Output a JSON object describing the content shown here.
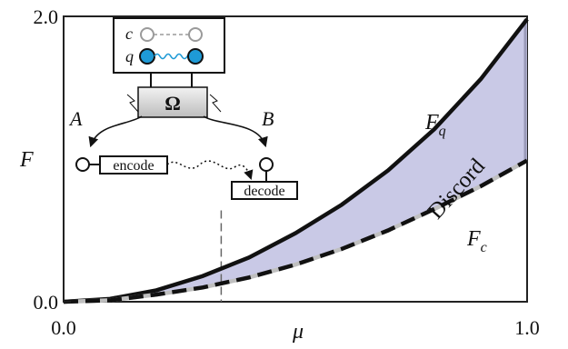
{
  "chart_data": {
    "type": "area",
    "title": "",
    "xlabel": "μ",
    "ylabel": "F",
    "xlim": [
      0.0,
      1.0
    ],
    "ylim": [
      0.0,
      2.0
    ],
    "x_ticks": [
      "0.0",
      "1.0"
    ],
    "y_ticks": [
      "0.0",
      "2.0"
    ],
    "grid": false,
    "series": [
      {
        "name": "Fq",
        "style": "solid",
        "color": "#111111",
        "x": [
          0.0,
          0.1,
          0.2,
          0.3,
          0.4,
          0.5,
          0.6,
          0.7,
          0.8,
          0.9,
          1.0
        ],
        "y": [
          0.0,
          0.02,
          0.08,
          0.18,
          0.31,
          0.48,
          0.68,
          0.92,
          1.21,
          1.56,
          1.98
        ]
      },
      {
        "name": "Fc",
        "style": "dashed",
        "color": "#111111",
        "x": [
          0.0,
          0.1,
          0.2,
          0.3,
          0.4,
          0.5,
          0.6,
          0.7,
          0.8,
          0.9,
          1.0
        ],
        "y": [
          0.0,
          0.01,
          0.05,
          0.1,
          0.17,
          0.26,
          0.37,
          0.5,
          0.65,
          0.81,
          0.99
        ]
      }
    ],
    "annotations": {
      "shaded_region_label": "Discord",
      "shaded_color": "#c9c9e6",
      "vertical_dashed_x": 0.34
    }
  },
  "inset": {
    "c_label": "c",
    "q_label": "q",
    "omega_label": "Ω",
    "node_a_label": "A",
    "node_b_label": "B",
    "encode_label": "encode",
    "decode_label": "decode",
    "qubit_color": "#1e9ad6"
  }
}
